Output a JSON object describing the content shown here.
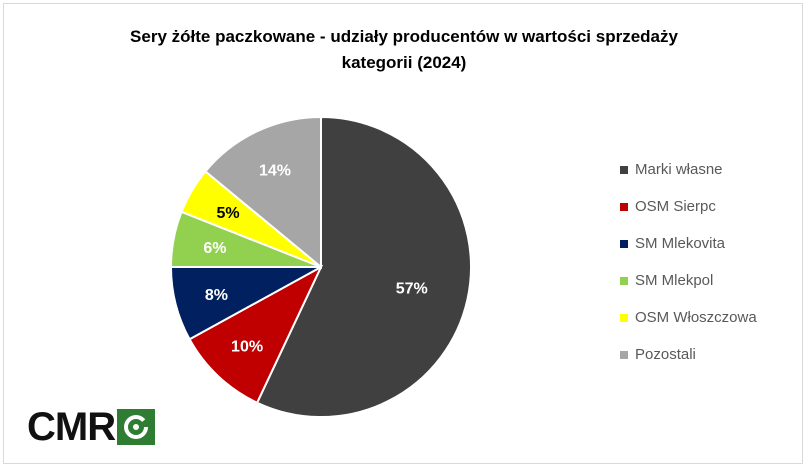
{
  "title": {
    "line1": "Sery żółte paczkowane - udziały producentów w wartości sprzedaży",
    "line2": "kategorii (2024)"
  },
  "logo": {
    "text": "CMR",
    "mark": "cmr-logo-mark-icon",
    "mark_color": "#2e7d32"
  },
  "chart_data": {
    "type": "pie",
    "title": "Sery żółte paczkowane - udziały producentów w wartości sprzedaży kategorii (2024)",
    "unit": "%",
    "legend_position": "right",
    "slices": [
      {
        "name": "Marki własne",
        "value": 57,
        "label": "57%",
        "color": "#404040"
      },
      {
        "name": "OSM Sierpc",
        "value": 10,
        "label": "10%",
        "color": "#c00000"
      },
      {
        "name": "SM Mlekovita",
        "value": 8,
        "label": "8%",
        "color": "#002060"
      },
      {
        "name": "SM Mlekpol",
        "value": 6,
        "label": "6%",
        "color": "#92d050"
      },
      {
        "name": "OSM Włoszczowa",
        "value": 5,
        "label": "5%",
        "color": "#ffff00"
      },
      {
        "name": "Pozostali",
        "value": 14,
        "label": "14%",
        "color": "#a6a6a6"
      }
    ]
  }
}
